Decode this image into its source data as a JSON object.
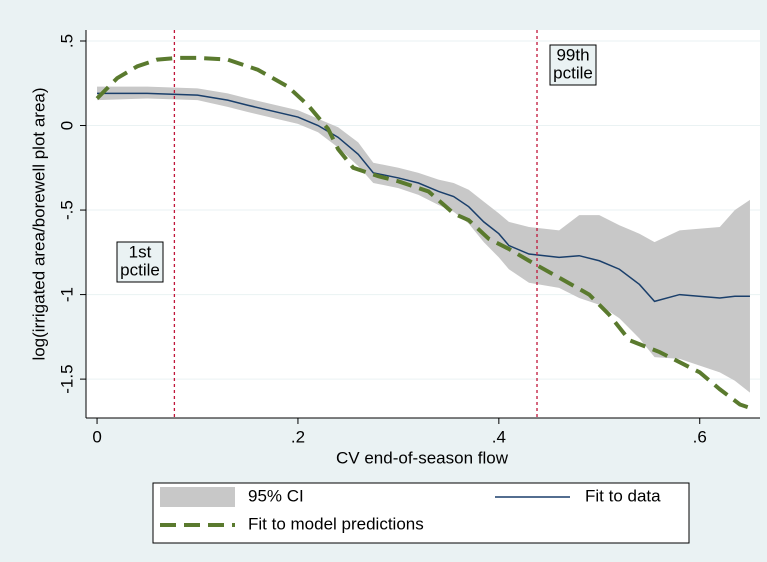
{
  "chart_data": {
    "type": "line",
    "xlabel": "CV end-of-season flow",
    "ylabel": "log(irrigated area/borewell plot area)",
    "xlim": [
      -0.011,
      0.66
    ],
    "ylim": [
      -1.73,
      0.565
    ],
    "xticks": [
      0,
      {
        "value": 0.2,
        "label": ".2"
      },
      {
        "value": 0.4,
        "label": ".4"
      },
      {
        "value": 0.6,
        "label": ".6"
      }
    ],
    "yticks": [
      {
        "value": 0.5,
        "label": ".5"
      },
      0,
      {
        "value": -0.5,
        "label": "-.5"
      },
      -1,
      -1.5
    ],
    "grid": true,
    "vlines": [
      0.077,
      0.438
    ],
    "vline_color": "#c0163a",
    "annotations": [
      {
        "lines": [
          "1st",
          "pctile"
        ]
      },
      {
        "lines": [
          "99th",
          "pctile"
        ]
      }
    ],
    "series": [
      {
        "name": "95% CI",
        "color": "#c8c8c8",
        "x": [
          0,
          0.05,
          0.1,
          0.13,
          0.15,
          0.2,
          0.22,
          0.24,
          0.26,
          0.275,
          0.3,
          0.32,
          0.34,
          0.355,
          0.37,
          0.385,
          0.4,
          0.41,
          0.43,
          0.46,
          0.48,
          0.5,
          0.52,
          0.54,
          0.555,
          0.58,
          0.62,
          0.635,
          0.65
        ],
        "upper": [
          0.23,
          0.23,
          0.22,
          0.19,
          0.16,
          0.09,
          0.04,
          -0.01,
          -0.1,
          -0.22,
          -0.25,
          -0.28,
          -0.32,
          -0.34,
          -0.38,
          -0.45,
          -0.52,
          -0.57,
          -0.6,
          -0.62,
          -0.53,
          -0.53,
          -0.59,
          -0.64,
          -0.69,
          -0.62,
          -0.6,
          -0.5,
          -0.44
        ],
        "lower": [
          0.15,
          0.16,
          0.15,
          0.11,
          0.08,
          0.01,
          -0.04,
          -0.13,
          -0.24,
          -0.34,
          -0.37,
          -0.41,
          -0.47,
          -0.51,
          -0.58,
          -0.69,
          -0.78,
          -0.85,
          -0.93,
          -0.96,
          -1.02,
          -1.06,
          -1.14,
          -1.26,
          -1.37,
          -1.38,
          -1.46,
          -1.51,
          -1.58
        ]
      },
      {
        "name": "Fit to data",
        "color": "#1a3f6b",
        "x": [
          0,
          0.05,
          0.1,
          0.13,
          0.15,
          0.2,
          0.22,
          0.24,
          0.26,
          0.275,
          0.3,
          0.32,
          0.34,
          0.355,
          0.37,
          0.385,
          0.4,
          0.41,
          0.43,
          0.46,
          0.48,
          0.5,
          0.52,
          0.54,
          0.555,
          0.58,
          0.62,
          0.635,
          0.65
        ],
        "values": [
          0.19,
          0.19,
          0.18,
          0.15,
          0.12,
          0.05,
          0,
          -0.07,
          -0.17,
          -0.28,
          -0.31,
          -0.34,
          -0.39,
          -0.42,
          -0.48,
          -0.57,
          -0.64,
          -0.71,
          -0.76,
          -0.78,
          -0.77,
          -0.8,
          -0.85,
          -0.94,
          -1.04,
          -1,
          -1.02,
          -1.01,
          -1.01
        ]
      },
      {
        "name": "Fit to model predictions",
        "color": "#5a7a2e",
        "dashed": true,
        "x": [
          0,
          0.02,
          0.04,
          0.06,
          0.08,
          0.1,
          0.13,
          0.16,
          0.19,
          0.21,
          0.23,
          0.24,
          0.255,
          0.28,
          0.3,
          0.33,
          0.355,
          0.37,
          0.39,
          0.41,
          0.43,
          0.46,
          0.49,
          0.51,
          0.53,
          0.56,
          0.58,
          0.6,
          0.62,
          0.64,
          0.65
        ],
        "values": [
          0.16,
          0.28,
          0.35,
          0.39,
          0.4,
          0.4,
          0.39,
          0.33,
          0.23,
          0.12,
          -0.02,
          -0.14,
          -0.25,
          -0.3,
          -0.33,
          -0.39,
          -0.52,
          -0.56,
          -0.67,
          -0.73,
          -0.8,
          -0.9,
          -1,
          -1.12,
          -1.27,
          -1.34,
          -1.4,
          -1.46,
          -1.56,
          -1.65,
          -1.67
        ]
      }
    ]
  }
}
